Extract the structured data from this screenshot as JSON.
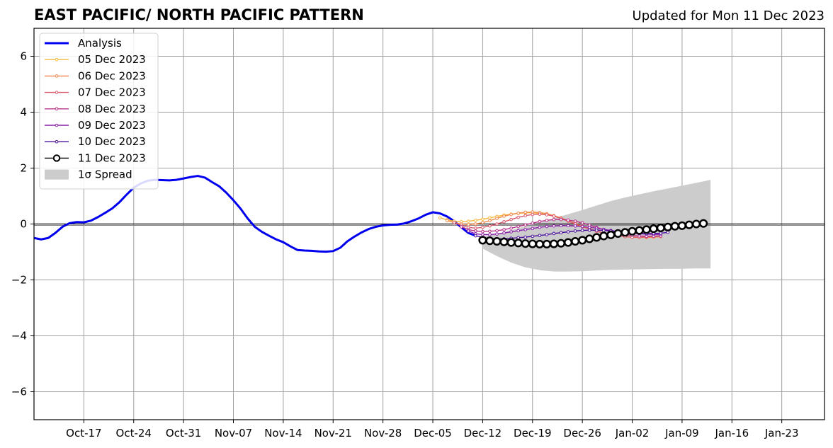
{
  "header": {
    "title": "EAST PACIFIC/ NORTH PACIFIC PATTERN",
    "updated": "Updated for Mon 11 Dec 2023"
  },
  "chart_data": {
    "type": "line",
    "x_axis": {
      "type": "date",
      "range": [
        "2023-10-10",
        "2024-01-29"
      ],
      "tick_labels": [
        "Oct-17",
        "Oct-24",
        "Oct-31",
        "Nov-07",
        "Nov-14",
        "Nov-21",
        "Nov-28",
        "Dec-05",
        "Dec-12",
        "Dec-19",
        "Dec-26",
        "Jan-02",
        "Jan-09",
        "Jan-16",
        "Jan-23"
      ],
      "tick_dates": [
        "2023-10-17",
        "2023-10-24",
        "2023-10-31",
        "2023-11-07",
        "2023-11-14",
        "2023-11-21",
        "2023-11-28",
        "2023-12-05",
        "2023-12-12",
        "2023-12-19",
        "2023-12-26",
        "2024-01-02",
        "2024-01-09",
        "2024-01-16",
        "2024-01-23"
      ]
    },
    "y_axis": {
      "range": [
        -7,
        7
      ],
      "ticks": [
        -6,
        -4,
        -2,
        0,
        2,
        4,
        6
      ],
      "tick_labels": [
        "−6",
        "−4",
        "−2",
        "0",
        "2",
        "4",
        "6"
      ]
    },
    "grid": true,
    "zero_line": true,
    "legend_position": "top-left",
    "legend_labels": [
      "Analysis",
      "05 Dec 2023",
      "06 Dec 2023",
      "07 Dec 2023",
      "08 Dec 2023",
      "09 Dec 2023",
      "10 Dec 2023",
      "11 Dec 2023",
      "1σ Spread"
    ],
    "analysis": {
      "name": "Analysis",
      "color": "#0000ee",
      "points": [
        [
          "2023-10-10",
          -0.5
        ],
        [
          "2023-10-11",
          -0.55
        ],
        [
          "2023-10-12",
          -0.5
        ],
        [
          "2023-10-13",
          -0.32
        ],
        [
          "2023-10-14",
          -0.1
        ],
        [
          "2023-10-15",
          0.03
        ],
        [
          "2023-10-16",
          0.07
        ],
        [
          "2023-10-17",
          0.06
        ],
        [
          "2023-10-18",
          0.12
        ],
        [
          "2023-10-19",
          0.25
        ],
        [
          "2023-10-20",
          0.4
        ],
        [
          "2023-10-21",
          0.56
        ],
        [
          "2023-10-22",
          0.78
        ],
        [
          "2023-10-23",
          1.05
        ],
        [
          "2023-10-24",
          1.3
        ],
        [
          "2023-10-25",
          1.45
        ],
        [
          "2023-10-26",
          1.55
        ],
        [
          "2023-10-27",
          1.58
        ],
        [
          "2023-10-28",
          1.57
        ],
        [
          "2023-10-29",
          1.56
        ],
        [
          "2023-10-30",
          1.58
        ],
        [
          "2023-10-31",
          1.63
        ],
        [
          "2023-11-01",
          1.68
        ],
        [
          "2023-11-02",
          1.72
        ],
        [
          "2023-11-03",
          1.66
        ],
        [
          "2023-11-04",
          1.5
        ],
        [
          "2023-11-05",
          1.35
        ],
        [
          "2023-11-06",
          1.12
        ],
        [
          "2023-11-07",
          0.85
        ],
        [
          "2023-11-08",
          0.55
        ],
        [
          "2023-11-09",
          0.2
        ],
        [
          "2023-11-10",
          -0.1
        ],
        [
          "2023-11-11",
          -0.28
        ],
        [
          "2023-11-12",
          -0.42
        ],
        [
          "2023-11-13",
          -0.55
        ],
        [
          "2023-11-14",
          -0.65
        ],
        [
          "2023-11-15",
          -0.8
        ],
        [
          "2023-11-16",
          -0.93
        ],
        [
          "2023-11-17",
          -0.95
        ],
        [
          "2023-11-18",
          -0.96
        ],
        [
          "2023-11-19",
          -0.98
        ],
        [
          "2023-11-20",
          -0.99
        ],
        [
          "2023-11-21",
          -0.97
        ],
        [
          "2023-11-22",
          -0.85
        ],
        [
          "2023-11-23",
          -0.62
        ],
        [
          "2023-11-24",
          -0.45
        ],
        [
          "2023-11-25",
          -0.3
        ],
        [
          "2023-11-26",
          -0.18
        ],
        [
          "2023-11-27",
          -0.1
        ],
        [
          "2023-11-28",
          -0.05
        ],
        [
          "2023-11-29",
          -0.03
        ],
        [
          "2023-11-30",
          -0.02
        ],
        [
          "2023-12-01",
          0.02
        ],
        [
          "2023-12-02",
          0.1
        ],
        [
          "2023-12-03",
          0.2
        ],
        [
          "2023-12-04",
          0.33
        ],
        [
          "2023-12-05",
          0.42
        ],
        [
          "2023-12-06",
          0.38
        ],
        [
          "2023-12-07",
          0.27
        ],
        [
          "2023-12-08",
          0.1
        ],
        [
          "2023-12-09",
          -0.12
        ],
        [
          "2023-12-10",
          -0.32
        ],
        [
          "2023-12-11",
          -0.42
        ]
      ]
    },
    "forecasts": [
      {
        "name": "05 Dec 2023",
        "color": "#f5b83d",
        "start": "2023-12-06",
        "values": [
          0.22,
          0.15,
          0.1,
          0.08,
          0.1,
          0.13,
          0.17,
          0.22,
          0.27,
          0.32,
          0.35,
          0.38,
          0.4,
          0.4,
          0.38,
          0.34,
          0.28,
          0.2,
          0.1,
          0.0,
          -0.1,
          -0.18,
          -0.25,
          -0.32,
          -0.38,
          -0.42,
          -0.45,
          -0.47,
          -0.48,
          -0.48,
          -0.47,
          -0.45
        ]
      },
      {
        "name": "06 Dec 2023",
        "color": "#f0884c",
        "start": "2023-12-07",
        "values": [
          0.12,
          0.05,
          0.0,
          -0.02,
          0.0,
          0.05,
          0.12,
          0.2,
          0.28,
          0.34,
          0.39,
          0.42,
          0.43,
          0.41,
          0.37,
          0.3,
          0.22,
          0.12,
          0.02,
          -0.08,
          -0.17,
          -0.25,
          -0.32,
          -0.38,
          -0.42,
          -0.45,
          -0.47,
          -0.48,
          -0.48,
          -0.47,
          -0.45
        ]
      },
      {
        "name": "07 Dec 2023",
        "color": "#d95a6e",
        "start": "2023-12-08",
        "values": [
          0.05,
          -0.05,
          -0.12,
          -0.15,
          -0.12,
          -0.07,
          0.0,
          0.08,
          0.16,
          0.24,
          0.3,
          0.34,
          0.35,
          0.33,
          0.28,
          0.2,
          0.1,
          0.0,
          -0.1,
          -0.18,
          -0.26,
          -0.33,
          -0.38,
          -0.42,
          -0.45,
          -0.47,
          -0.47,
          -0.46,
          -0.44,
          -0.42
        ]
      },
      {
        "name": "08 Dec 2023",
        "color": "#b8338a",
        "start": "2023-12-09",
        "values": [
          -0.1,
          -0.2,
          -0.25,
          -0.27,
          -0.26,
          -0.24,
          -0.2,
          -0.15,
          -0.09,
          -0.03,
          0.03,
          0.09,
          0.13,
          0.16,
          0.16,
          0.14,
          0.1,
          0.04,
          -0.04,
          -0.12,
          -0.2,
          -0.28,
          -0.34,
          -0.38,
          -0.41,
          -0.43,
          -0.44,
          -0.44,
          -0.43
        ]
      },
      {
        "name": "09 Dec 2023",
        "color": "#8a1fa8",
        "start": "2023-12-10",
        "values": [
          -0.25,
          -0.35,
          -0.38,
          -0.38,
          -0.36,
          -0.32,
          -0.28,
          -0.24,
          -0.2,
          -0.16,
          -0.12,
          -0.09,
          -0.07,
          -0.06,
          -0.06,
          -0.07,
          -0.09,
          -0.12,
          -0.15,
          -0.19,
          -0.23,
          -0.27,
          -0.3,
          -0.33,
          -0.35,
          -0.36,
          -0.37,
          -0.37
        ]
      },
      {
        "name": "10 Dec 2023",
        "color": "#4a0f9a",
        "start": "2023-12-11",
        "values": [
          -0.42,
          -0.48,
          -0.52,
          -0.53,
          -0.53,
          -0.51,
          -0.49,
          -0.47,
          -0.44,
          -0.41,
          -0.38,
          -0.34,
          -0.31,
          -0.28,
          -0.25,
          -0.23,
          -0.22,
          -0.22,
          -0.23,
          -0.25,
          -0.27,
          -0.29,
          -0.31,
          -0.33,
          -0.34,
          -0.34,
          -0.33,
          -0.3
        ]
      },
      {
        "name": "11 Dec 2023",
        "color": "#000000",
        "start": "2023-12-12",
        "values": [
          -0.58,
          -0.6,
          -0.62,
          -0.64,
          -0.66,
          -0.68,
          -0.7,
          -0.71,
          -0.72,
          -0.72,
          -0.71,
          -0.69,
          -0.66,
          -0.62,
          -0.58,
          -0.53,
          -0.48,
          -0.43,
          -0.39,
          -0.34,
          -0.3,
          -0.26,
          -0.23,
          -0.2,
          -0.17,
          -0.14,
          -0.11,
          -0.08,
          -0.06,
          -0.03,
          0.0,
          0.02
        ]
      }
    ],
    "spread": {
      "name": "1σ Spread",
      "color": "#cccccc",
      "x": [
        "2023-12-12",
        "2023-12-14",
        "2023-12-16",
        "2023-12-18",
        "2023-12-20",
        "2023-12-22",
        "2023-12-24",
        "2023-12-26",
        "2023-12-28",
        "2023-12-30",
        "2024-01-01",
        "2024-01-03",
        "2024-01-05",
        "2024-01-07",
        "2024-01-09",
        "2024-01-11",
        "2024-01-13"
      ],
      "upper": [
        -0.45,
        -0.35,
        -0.22,
        -0.08,
        0.05,
        0.2,
        0.35,
        0.5,
        0.66,
        0.82,
        0.95,
        1.06,
        1.17,
        1.27,
        1.37,
        1.47,
        1.58
      ],
      "lower": [
        -0.88,
        -1.15,
        -1.38,
        -1.55,
        -1.65,
        -1.7,
        -1.7,
        -1.69,
        -1.66,
        -1.64,
        -1.63,
        -1.62,
        -1.61,
        -1.6,
        -1.6,
        -1.59,
        -1.59
      ]
    }
  }
}
